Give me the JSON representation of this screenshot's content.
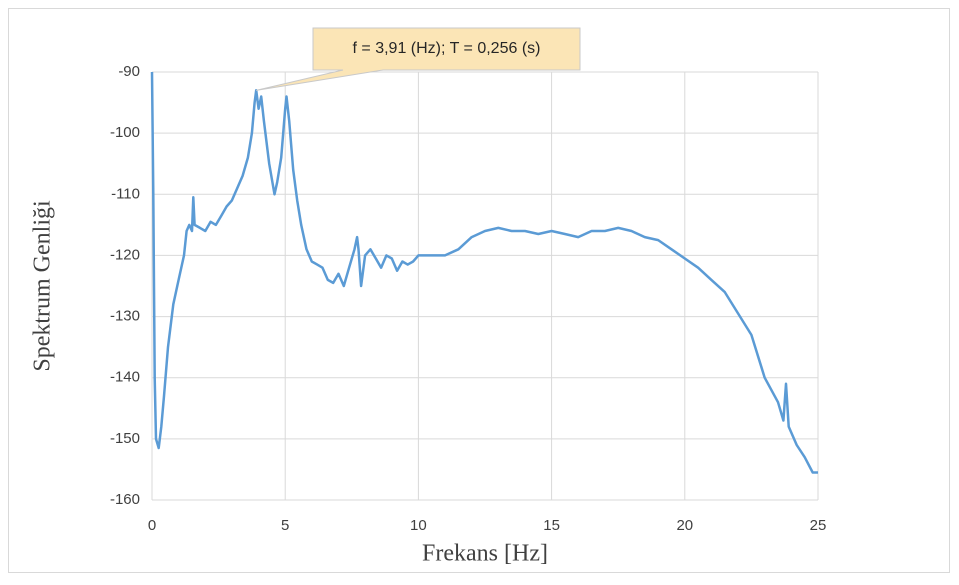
{
  "chart_data": {
    "type": "line",
    "x_label": "Frekans [Hz]",
    "y_label": "Spektrum Genliği",
    "x": [
      0,
      0.05,
      0.1,
      0.15,
      0.25,
      0.35,
      0.45,
      0.6,
      0.8,
      1.0,
      1.2,
      1.3,
      1.4,
      1.5,
      1.55,
      1.6,
      1.8,
      2.0,
      2.2,
      2.4,
      2.6,
      2.8,
      3.0,
      3.2,
      3.4,
      3.6,
      3.75,
      3.85,
      3.91,
      4.0,
      4.1,
      4.2,
      4.4,
      4.6,
      4.7,
      4.85,
      5.0,
      5.05,
      5.15,
      5.3,
      5.45,
      5.6,
      5.8,
      6.0,
      6.2,
      6.4,
      6.6,
      6.8,
      7.0,
      7.2,
      7.4,
      7.6,
      7.7,
      7.75,
      7.85,
      8.0,
      8.2,
      8.4,
      8.6,
      8.8,
      9.0,
      9.2,
      9.4,
      9.6,
      9.8,
      10.0,
      10.5,
      11,
      11.5,
      12,
      12.5,
      13,
      13.5,
      14,
      14.5,
      15,
      15.5,
      16,
      16.5,
      17,
      17.5,
      18,
      18.5,
      19,
      19.5,
      20,
      20.5,
      21,
      21.5,
      22,
      22.5,
      23,
      23.5,
      23.7,
      23.8,
      23.9,
      24.2,
      24.5,
      24.8,
      25
    ],
    "series": [
      {
        "color": "#5b9bd5",
        "values": [
          -90,
          -110,
          -140,
          -150,
          -151.5,
          -148,
          -143,
          -135,
          -128,
          -124,
          -120,
          -116,
          -115,
          -116,
          -110.5,
          -115,
          -115.5,
          -116,
          -114.5,
          -115,
          -113.5,
          -112,
          -111,
          -109,
          -107,
          -104,
          -100,
          -95,
          -93,
          -96,
          -94,
          -98,
          -105,
          -110,
          -108,
          -104,
          -96,
          -94,
          -98,
          -106,
          -111,
          -115,
          -119,
          -121,
          -121.5,
          -122,
          -124,
          -124.5,
          -123,
          -125,
          -122,
          -119,
          -117,
          -119,
          -125,
          -120,
          -119,
          -120.5,
          -122,
          -120,
          -120.5,
          -122.5,
          -121,
          -121.5,
          -121,
          -120,
          -120,
          -120,
          -119,
          -117,
          -116,
          -115.5,
          -116,
          -116,
          -116.5,
          -116,
          -116.5,
          -117,
          -116,
          -116,
          -115.5,
          -116,
          -117,
          -117.5,
          -119,
          -120.5,
          -122,
          -124,
          -126,
          -129.5,
          -133,
          -140,
          -144,
          -147,
          -141,
          -148,
          -151,
          -153,
          -155.5,
          -155.5
        ]
      }
    ],
    "xlim": [
      0,
      25
    ],
    "xticks": [
      0,
      5,
      10,
      15,
      20,
      25
    ],
    "ylim": [
      -160,
      -90
    ],
    "yticks": [
      -90,
      -100,
      -110,
      -120,
      -130,
      -140,
      -150,
      -160
    ],
    "grid": true,
    "annotation": {
      "text": "f = 3,91 (Hz); T = 0,256 (s)",
      "x": 3.91,
      "y": -93
    }
  }
}
